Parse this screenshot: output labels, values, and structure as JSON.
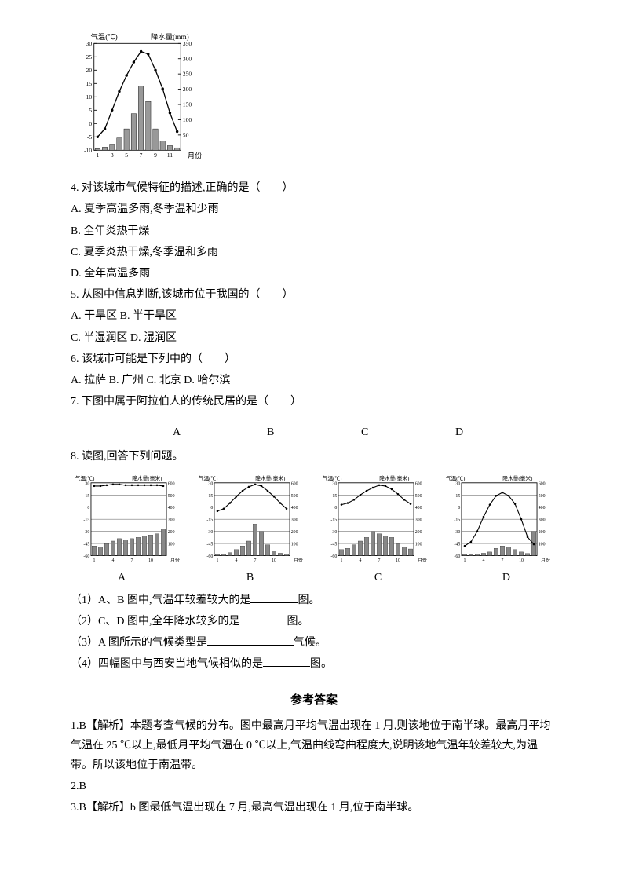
{
  "mainChart": {
    "leftTitle": "气温(℃)",
    "rightTitle": "降水量(mm)",
    "xTitle": "月份",
    "tempTicks": [
      "30",
      "25",
      "20",
      "15",
      "10",
      "5",
      "0",
      "-5",
      "-10"
    ],
    "precTicks": [
      "350",
      "300",
      "250",
      "200",
      "150",
      "100",
      "50"
    ],
    "months": [
      "1",
      "3",
      "5",
      "7",
      "9",
      "11"
    ],
    "tempValues": [
      -5,
      -2,
      5,
      12,
      18,
      23,
      27,
      26,
      20,
      13,
      4,
      -3
    ],
    "precValues": [
      5,
      10,
      20,
      40,
      70,
      120,
      210,
      160,
      70,
      30,
      15,
      8
    ],
    "precMax": 350,
    "tempMin": -10,
    "tempMax": 30,
    "barColor": "#999999",
    "lineColor": "#000000",
    "bgColor": "#ffffff"
  },
  "q4": {
    "stem": "4. 对该城市气候特征的描述,正确的是（　　）",
    "optA": "A. 夏季高温多雨,冬季温和少雨",
    "optB": "B. 全年炎热干燥",
    "optC": "C. 夏季炎热干燥,冬季温和多雨",
    "optD": "D. 全年高温多雨"
  },
  "q5": {
    "stem": "5. 从图中信息判断,该城市位于我国的（　　）",
    "line1": "A. 干旱区 B. 半干旱区",
    "line2": "C. 半湿润区 D. 湿润区"
  },
  "q6": {
    "stem": "6. 该城市可能是下列中的（　　）",
    "opts": "A. 拉萨 B. 广州 C. 北京 D. 哈尔滨"
  },
  "q7": {
    "stem": "7. 下图中属于阿拉伯人的传统民居的是（　　）"
  },
  "optLabels": {
    "a": "A",
    "b": "B",
    "c": "C",
    "d": "D"
  },
  "q8": {
    "stem": "8. 读图,回答下列问题。",
    "sub1a": "（1）A、B 图中,气温年较差较大的是",
    "sub1b": "图。",
    "sub2a": "（2）C、D 图中,全年降水较多的是",
    "sub2b": "图。",
    "sub3a": "（3）A 图所示的气候类型是",
    "sub3b": "气候。",
    "sub4a": "（4）四幅图中与西安当地气候相似的是",
    "sub4b": "图。"
  },
  "miniCharts": {
    "leftTitle": "气温(℃)",
    "rightTitle": "降水量(毫米)",
    "xTitle": "月份",
    "tempTicks": [
      "30",
      "15",
      "0",
      "-15",
      "-30",
      "-45",
      "-60"
    ],
    "precTicks": [
      "600",
      "500",
      "400",
      "300",
      "200",
      "100"
    ],
    "xTicks": [
      "1",
      "4",
      "7",
      "10"
    ],
    "tempMin": -60,
    "tempMax": 30,
    "precMax": 600,
    "barColor": "#888888",
    "lineColor": "#000000",
    "A": {
      "temp": [
        26,
        26,
        27,
        28,
        28,
        27,
        27,
        27,
        27,
        27,
        27,
        26
      ],
      "prec": [
        80,
        70,
        100,
        120,
        140,
        130,
        140,
        150,
        160,
        170,
        180,
        220
      ]
    },
    "B": {
      "temp": [
        -5,
        -2,
        5,
        13,
        20,
        25,
        28,
        26,
        20,
        13,
        5,
        -2
      ],
      "prec": [
        10,
        15,
        25,
        50,
        80,
        120,
        260,
        200,
        90,
        40,
        20,
        12
      ]
    },
    "C": {
      "temp": [
        3,
        5,
        9,
        15,
        20,
        24,
        27,
        26,
        22,
        16,
        9,
        4
      ],
      "prec": [
        50,
        60,
        90,
        120,
        150,
        200,
        180,
        160,
        150,
        100,
        70,
        55
      ]
    },
    "D": {
      "temp": [
        -48,
        -43,
        -30,
        -12,
        3,
        14,
        18,
        14,
        4,
        -15,
        -37,
        -46
      ],
      "prec": [
        10,
        10,
        12,
        20,
        30,
        60,
        80,
        70,
        50,
        30,
        18,
        200
      ]
    }
  },
  "answers": {
    "title": "参考答案",
    "a1": "1.B【解析】本题考查气候的分布。图中最高月平均气温出现在 1 月,则该地位于南半球。最高月平均气温在 25 ℃以上,最低月平均气温在 0 ℃以上,气温曲线弯曲程度大,说明该地气温年较差较大,为温带。所以该地位于南温带。",
    "a2": "2.B",
    "a3": "3.B【解析】b 图最低气温出现在 7 月,最高气温出现在 1 月,位于南半球。"
  }
}
